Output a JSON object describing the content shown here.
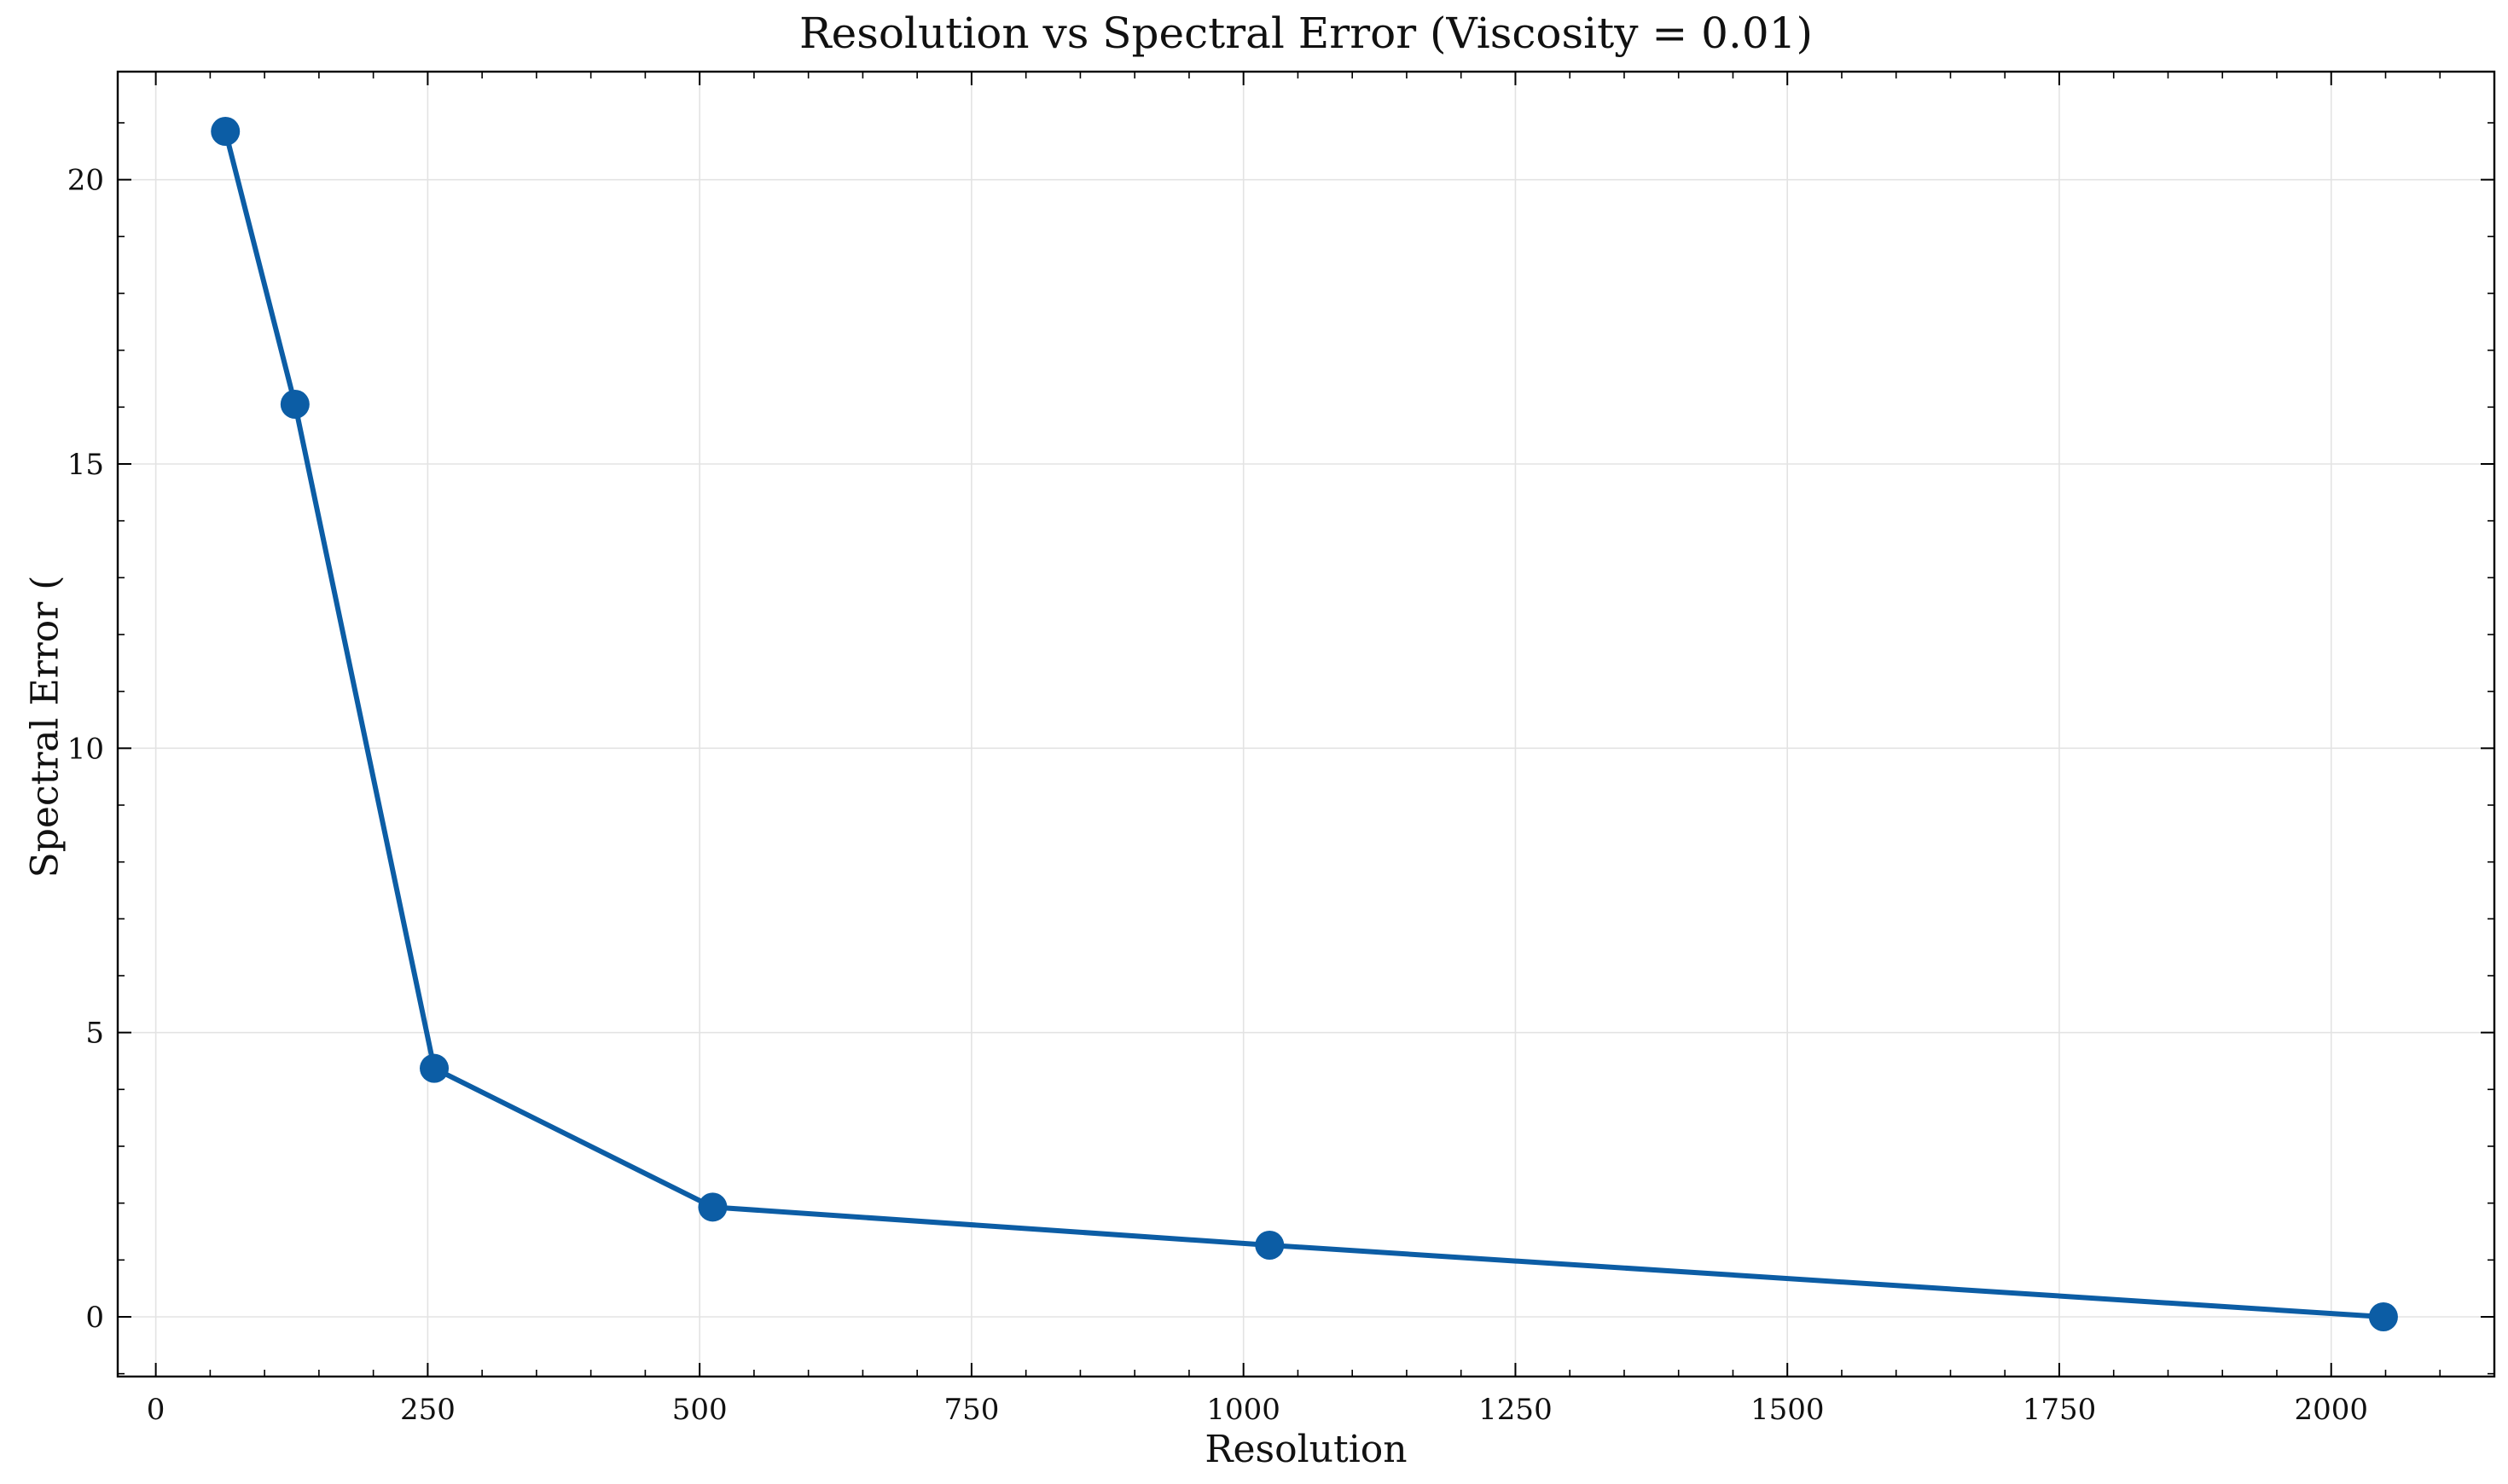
{
  "chart_data": {
    "type": "line",
    "title": "Resolution vs Spectral Error (Viscosity = 0.01)",
    "xlabel": "Resolution",
    "ylabel": "Spectral Error (",
    "xlim": [
      -35,
      2150
    ],
    "ylim": [
      -1.05,
      21.9
    ],
    "x_ticks": [
      0,
      250,
      500,
      750,
      1000,
      1250,
      1500,
      1750,
      2000
    ],
    "x_tick_labels": [
      "0",
      "250",
      "500",
      "750",
      "1000",
      "1250",
      "1500",
      "1750",
      "2000"
    ],
    "y_ticks": [
      0,
      5,
      10,
      15,
      20
    ],
    "y_tick_labels": [
      "0",
      "5",
      "10",
      "15",
      "20"
    ],
    "x_minor_step": 50,
    "y_minor_step": 1,
    "grid": true,
    "legend": "none",
    "series": [
      {
        "x": [
          64,
          128,
          256,
          512,
          1024,
          2048
        ],
        "y": [
          20.85,
          16.05,
          4.37,
          1.93,
          1.26,
          0.0
        ],
        "color": "#0C5DA5",
        "marker": "circle"
      }
    ]
  }
}
